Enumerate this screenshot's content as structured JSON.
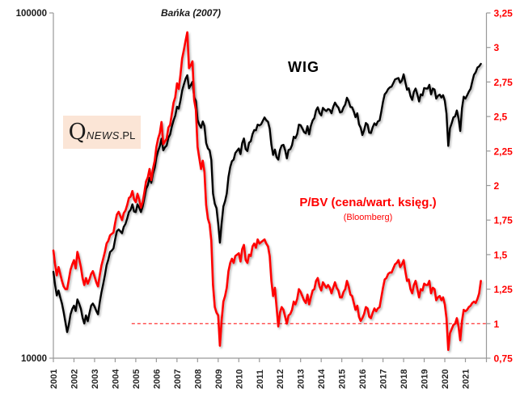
{
  "chart_data": {
    "type": "line",
    "start_year": 2001,
    "frequency": "monthly",
    "x_axis": {
      "ticks": [
        "2001",
        "2002",
        "2003",
        "2004",
        "2005",
        "2006",
        "2007",
        "2008",
        "2009",
        "2010",
        "2011",
        "2012",
        "2013",
        "2014",
        "2015",
        "2016",
        "2017",
        "2018",
        "2019",
        "2020",
        "2021"
      ]
    },
    "left_axis": {
      "scale": "log",
      "min": 10000,
      "max": 100000,
      "tick_labels": [
        "100000",
        "10000"
      ],
      "tick_values": [
        100000,
        10000
      ]
    },
    "right_axis": {
      "min": 0.75,
      "max": 3.25,
      "tick_labels": [
        "3,25",
        "3",
        "2,75",
        "2,5",
        "2,25",
        "2",
        "1,75",
        "1,5",
        "1,25",
        "1",
        "0,75"
      ],
      "tick_values": [
        3.25,
        3,
        2.75,
        2.5,
        2.25,
        2,
        1.75,
        1.5,
        1.25,
        1,
        0.75
      ],
      "color": "#ff0000"
    },
    "reference_line": {
      "value": 1,
      "starts_at_year": 2004.8,
      "style": "dashed",
      "color": "#ff0000"
    },
    "series": [
      {
        "name": "WIG",
        "axis": "left",
        "color": "#000000",
        "values": [
          17800,
          16300,
          15200,
          15700,
          15000,
          14400,
          13600,
          12700,
          11900,
          12500,
          13400,
          13900,
          14200,
          13700,
          14800,
          14400,
          13900,
          13100,
          12600,
          13300,
          12800,
          13500,
          14200,
          14400,
          14100,
          13700,
          13400,
          14500,
          15500,
          16400,
          17400,
          18600,
          19300,
          20300,
          20500,
          20800,
          22100,
          23300,
          23600,
          23300,
          23000,
          24000,
          24500,
          25400,
          26500,
          26900,
          27900,
          26600,
          26500,
          27900,
          27300,
          26500,
          27500,
          29100,
          30900,
          31700,
          33300,
          32200,
          34200,
          35600,
          38200,
          39800,
          41100,
          43200,
          40000,
          40800,
          41300,
          43500,
          44500,
          46900,
          48800,
          50400,
          53500,
          52800,
          55700,
          59500,
          62000,
          64500,
          66000,
          60500,
          61700,
          63200,
          57000,
          55600,
          49000,
          47500,
          46500,
          48500,
          47000,
          42000,
          40500,
          40000,
          37500,
          30000,
          28000,
          27200,
          24500,
          21600,
          24500,
          27500,
          28500,
          30000,
          33500,
          35800,
          37200,
          37600,
          39300,
          39900,
          40500,
          39000,
          42000,
          43300,
          40300,
          39800,
          42100,
          42500,
          44600,
          45800,
          45700,
          47500,
          47200,
          47600,
          48700,
          49800,
          48900,
          48400,
          46200,
          41500,
          38800,
          40200,
          38200,
          37600,
          40100,
          41300,
          41500,
          40000,
          37900,
          40100,
          40300,
          41400,
          43800,
          43400,
          44600,
          47500,
          47300,
          46300,
          45200,
          44800,
          47000,
          44500,
          47100,
          48800,
          49600,
          52200,
          53300,
          51300,
          50500,
          53100,
          52400,
          52000,
          52700,
          52400,
          51200,
          53400,
          55000,
          53900,
          53200,
          51500,
          51700,
          53300,
          54300,
          56800,
          55500,
          53400,
          53300,
          51800,
          49900,
          51200,
          47600,
          46500,
          44300,
          45700,
          48000,
          47500,
          45000,
          44900,
          46700,
          47900,
          47300,
          48500,
          48800,
          51800,
          55300,
          58100,
          58900,
          60200,
          60900,
          61200,
          62600,
          64200,
          64500,
          64800,
          62800,
          63700,
          66400,
          63000,
          59900,
          60500,
          57400,
          56000,
          59100,
          60400,
          58000,
          55400,
          58100,
          57700,
          60600,
          60400,
          60400,
          61900,
          58100,
          60400,
          60000,
          56500,
          57500,
          58000,
          56900,
          57800,
          55700,
          51100,
          41200,
          46300,
          47900,
          49800,
          50200,
          52200,
          49500,
          45500,
          53000,
          57200,
          56500,
          57700,
          59100,
          60300,
          63300,
          66200,
          67300,
          69500,
          70000,
          71200
        ]
      },
      {
        "name": "P/BV (cena/wart. księg.)",
        "axis": "right",
        "color": "#ff0000",
        "values": [
          1.53,
          1.43,
          1.35,
          1.41,
          1.36,
          1.31,
          1.27,
          1.25,
          1.25,
          1.32,
          1.39,
          1.43,
          1.46,
          1.4,
          1.52,
          1.47,
          1.41,
          1.33,
          1.28,
          1.33,
          1.29,
          1.32,
          1.36,
          1.38,
          1.34,
          1.3,
          1.27,
          1.35,
          1.42,
          1.47,
          1.52,
          1.58,
          1.6,
          1.64,
          1.65,
          1.66,
          1.73,
          1.79,
          1.81,
          1.78,
          1.75,
          1.8,
          1.82,
          1.86,
          1.91,
          1.92,
          1.96,
          1.9,
          1.88,
          1.94,
          1.9,
          1.84,
          1.88,
          1.95,
          2.03,
          2.06,
          2.12,
          2.04,
          2.12,
          2.18,
          2.28,
          2.34,
          2.38,
          2.46,
          2.3,
          2.32,
          2.34,
          2.42,
          2.44,
          2.52,
          2.6,
          2.64,
          2.74,
          2.7,
          2.8,
          2.92,
          2.98,
          3.05,
          3.11,
          2.85,
          2.87,
          2.9,
          2.62,
          2.55,
          2.28,
          2.2,
          2.12,
          2.18,
          2.1,
          1.86,
          1.76,
          1.72,
          1.6,
          1.28,
          1.12,
          1.08,
          1.06,
          0.84,
          1.02,
          1.16,
          1.2,
          1.26,
          1.38,
          1.44,
          1.47,
          1.44,
          1.49,
          1.5,
          1.51,
          1.45,
          1.54,
          1.57,
          1.46,
          1.44,
          1.5,
          1.49,
          1.56,
          1.58,
          1.55,
          1.61,
          1.58,
          1.59,
          1.6,
          1.61,
          1.58,
          1.56,
          1.49,
          1.31,
          1.2,
          1.26,
          1.12,
          0.98,
          1.08,
          1.12,
          1.1,
          1.05,
          1.0,
          1.06,
          1.07,
          1.1,
          1.16,
          1.14,
          1.18,
          1.25,
          1.23,
          1.2,
          1.17,
          1.15,
          1.21,
          1.14,
          1.19,
          1.24,
          1.25,
          1.31,
          1.33,
          1.27,
          1.24,
          1.3,
          1.28,
          1.26,
          1.28,
          1.26,
          1.22,
          1.26,
          1.3,
          1.26,
          1.24,
          1.19,
          1.19,
          1.23,
          1.25,
          1.31,
          1.27,
          1.21,
          1.2,
          1.15,
          1.1,
          1.13,
          1.05,
          1.02,
          1.04,
          1.07,
          1.12,
          1.11,
          1.05,
          1.04,
          1.08,
          1.11,
          1.09,
          1.11,
          1.12,
          1.19,
          1.26,
          1.32,
          1.33,
          1.36,
          1.37,
          1.37,
          1.4,
          1.43,
          1.44,
          1.46,
          1.41,
          1.43,
          1.46,
          1.38,
          1.31,
          1.32,
          1.25,
          1.22,
          1.28,
          1.31,
          1.25,
          1.19,
          1.25,
          1.24,
          1.29,
          1.28,
          1.28,
          1.31,
          1.22,
          1.26,
          1.25,
          1.17,
          1.19,
          1.2,
          1.17,
          1.19,
          1.14,
          1.04,
          0.81,
          0.93,
          0.96,
          0.99,
          1.0,
          1.04,
          0.98,
          0.88,
          1.02,
          1.1,
          1.09,
          1.1,
          1.12,
          1.13,
          1.15,
          1.16,
          1.15,
          1.18,
          1.22,
          1.31
        ]
      }
    ]
  },
  "labels": {
    "annotation": "Bańka (2007)",
    "wig": "WIG",
    "pbv": "P/BV (cena/wart. księg.)",
    "source": "(Bloomberg)"
  },
  "logo": {
    "q": "Q",
    "news": "NEWS",
    "pl": ".PL",
    "background": "#fbe5d6"
  },
  "colors": {
    "wig_line": "#000000",
    "pbv_line": "#ff0000",
    "axis": "#999999",
    "text_dark": "#1a1a1a"
  }
}
